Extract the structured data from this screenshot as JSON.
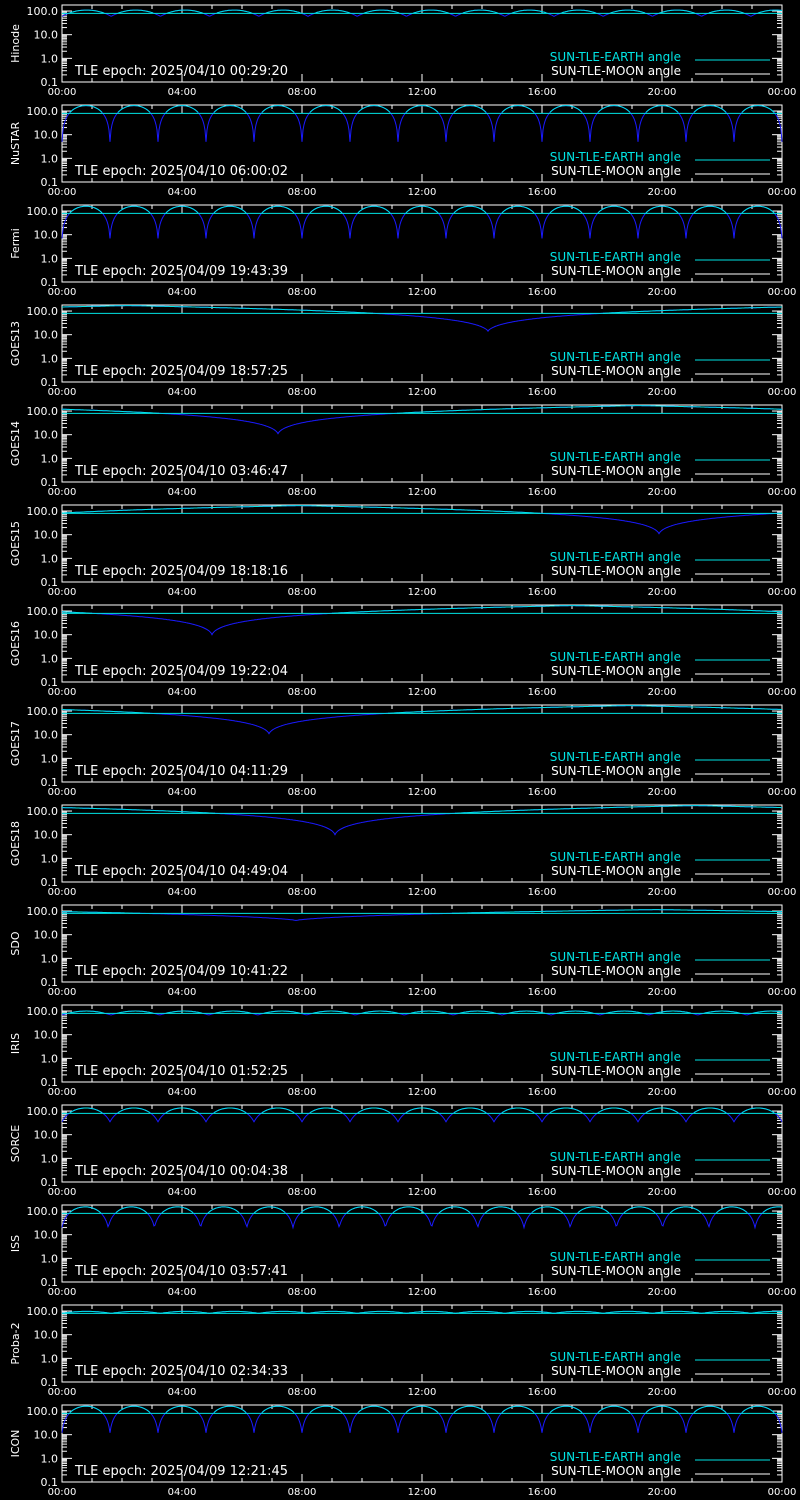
{
  "colors": {
    "background": "#000000",
    "axis": "#ffffff",
    "earth": "#00e5e5",
    "moon": "#ffffff",
    "sun_line": "#1a1aff"
  },
  "legend": {
    "earth_label": "SUN-TLE-EARTH angle",
    "moon_label": "SUN-TLE-MOON angle"
  },
  "x_ticks": [
    "00:00",
    "04:00",
    "08:00",
    "12:00",
    "16:00",
    "20:00",
    "00:00"
  ],
  "y_ticks": [
    "0.1",
    "1.0",
    "10.0",
    "100.0"
  ],
  "chart_data": [
    {
      "type": "line",
      "ylabel": "Hinode",
      "annotation": "TLE epoch: 2025/04/10 00:29:20",
      "xlim": [
        0,
        24
      ],
      "ylim": [
        0.1,
        180
      ],
      "yscale": "log",
      "series": [
        {
          "name": "SUN-TLE-EARTH angle",
          "model": "lobes",
          "period_h": 1.64,
          "min": 60,
          "peak": 110
        },
        {
          "model": "line",
          "x": [
            0,
            24
          ],
          "y": [
            80,
            80
          ]
        }
      ]
    },
    {
      "type": "line",
      "ylabel": "NuSTAR",
      "annotation": "TLE epoch: 2025/04/10 06:00:02",
      "xlim": [
        0,
        24
      ],
      "ylim": [
        0.1,
        180
      ],
      "yscale": "log",
      "series": [
        {
          "name": "SUN-TLE-EARTH angle",
          "model": "lobes",
          "period_h": 1.6,
          "min": 5,
          "peak": 170
        },
        {
          "model": "line",
          "x": [
            0,
            24
          ],
          "y": [
            80,
            80
          ]
        }
      ]
    },
    {
      "type": "line",
      "ylabel": "Fermi",
      "annotation": "TLE epoch: 2025/04/09 19:43:39",
      "xlim": [
        0,
        24
      ],
      "ylim": [
        0.1,
        180
      ],
      "yscale": "log",
      "series": [
        {
          "name": "SUN-TLE-EARTH angle",
          "model": "lobes",
          "period_h": 1.6,
          "min": 7,
          "peak": 160
        },
        {
          "model": "line",
          "x": [
            0,
            24
          ],
          "y": [
            80,
            80
          ]
        }
      ]
    },
    {
      "type": "line",
      "ylabel": "GOES13",
      "annotation": "TLE epoch: 2025/04/09 18:57:25",
      "xlim": [
        0,
        24
      ],
      "ylim": [
        0.1,
        180
      ],
      "yscale": "log",
      "series": [
        {
          "name": "SUN-TLE-EARTH angle",
          "model": "geo",
          "period_h": 24,
          "min_x": 14.2,
          "min": 14,
          "max": 170
        },
        {
          "model": "line",
          "x": [
            0,
            24
          ],
          "y": [
            80,
            80
          ]
        }
      ]
    },
    {
      "type": "line",
      "ylabel": "GOES14",
      "annotation": "TLE epoch: 2025/04/10 03:46:47",
      "xlim": [
        0,
        24
      ],
      "ylim": [
        0.1,
        180
      ],
      "yscale": "log",
      "series": [
        {
          "name": "SUN-TLE-EARTH angle",
          "model": "geo",
          "period_h": 24,
          "min_x": 7.2,
          "min": 11,
          "max": 170
        },
        {
          "model": "line",
          "x": [
            0,
            24
          ],
          "y": [
            80,
            80
          ]
        }
      ]
    },
    {
      "type": "line",
      "ylabel": "GOES15",
      "annotation": "TLE epoch: 2025/04/09 18:18:16",
      "xlim": [
        0,
        24
      ],
      "ylim": [
        0.1,
        180
      ],
      "yscale": "log",
      "series": [
        {
          "name": "SUN-TLE-EARTH angle",
          "model": "geo",
          "period_h": 24,
          "min_x": 19.9,
          "min": 11,
          "max": 170
        },
        {
          "model": "line",
          "x": [
            0,
            24
          ],
          "y": [
            80,
            80
          ]
        }
      ]
    },
    {
      "type": "line",
      "ylabel": "GOES16",
      "annotation": "TLE epoch: 2025/04/09 19:22:04",
      "xlim": [
        0,
        24
      ],
      "ylim": [
        0.1,
        180
      ],
      "yscale": "log",
      "series": [
        {
          "name": "SUN-TLE-EARTH angle",
          "model": "geo",
          "period_h": 24,
          "min_x": 5,
          "min": 10,
          "max": 170
        },
        {
          "model": "line",
          "x": [
            0,
            24
          ],
          "y": [
            80,
            80
          ]
        }
      ]
    },
    {
      "type": "line",
      "ylabel": "GOES17",
      "annotation": "TLE epoch: 2025/04/10 04:11:29",
      "xlim": [
        0,
        24
      ],
      "ylim": [
        0.1,
        180
      ],
      "yscale": "log",
      "series": [
        {
          "name": "SUN-TLE-EARTH angle",
          "model": "geo",
          "period_h": 24,
          "min_x": 6.9,
          "min": 11,
          "max": 170
        },
        {
          "model": "line",
          "x": [
            0,
            24
          ],
          "y": [
            80,
            80
          ]
        }
      ]
    },
    {
      "type": "line",
      "ylabel": "GOES18",
      "annotation": "TLE epoch: 2025/04/10 04:49:04",
      "xlim": [
        0,
        24
      ],
      "ylim": [
        0.1,
        180
      ],
      "yscale": "log",
      "series": [
        {
          "name": "SUN-TLE-EARTH angle",
          "model": "geo",
          "period_h": 24,
          "min_x": 9.1,
          "min": 10,
          "max": 170
        },
        {
          "model": "line",
          "x": [
            0,
            24
          ],
          "y": [
            80,
            80
          ]
        }
      ]
    },
    {
      "type": "line",
      "ylabel": "SDO",
      "annotation": "TLE epoch: 2025/04/09 10:41:22",
      "xlim": [
        0,
        24
      ],
      "ylim": [
        0.1,
        180
      ],
      "yscale": "log",
      "series": [
        {
          "name": "SUN-TLE-EARTH angle",
          "model": "geo",
          "period_h": 24,
          "min_x": 7.8,
          "min": 40,
          "max": 115
        },
        {
          "model": "line",
          "x": [
            0,
            24
          ],
          "y": [
            80,
            80
          ]
        }
      ]
    },
    {
      "type": "line",
      "ylabel": "IRIS",
      "annotation": "TLE epoch: 2025/04/10 01:52:25",
      "xlim": [
        0,
        24
      ],
      "ylim": [
        0.1,
        180
      ],
      "yscale": "log",
      "series": [
        {
          "name": "SUN-TLE-EARTH angle",
          "model": "lobes",
          "period_h": 1.63,
          "min": 68,
          "peak": 100
        },
        {
          "model": "line",
          "x": [
            0,
            24
          ],
          "y": [
            80,
            80
          ]
        }
      ]
    },
    {
      "type": "line",
      "ylabel": "SORCE",
      "annotation": "TLE epoch: 2025/04/10 00:04:38",
      "xlim": [
        0,
        24
      ],
      "ylim": [
        0.1,
        180
      ],
      "yscale": "log",
      "series": [
        {
          "name": "SUN-TLE-EARTH angle",
          "model": "lobes",
          "period_h": 1.6,
          "min": 35,
          "peak": 135
        },
        {
          "model": "line",
          "x": [
            0,
            24
          ],
          "y": [
            80,
            80
          ]
        }
      ]
    },
    {
      "type": "line",
      "ylabel": "ISS",
      "annotation": "TLE epoch: 2025/04/10 03:57:41",
      "xlim": [
        0,
        24
      ],
      "ylim": [
        0.1,
        180
      ],
      "yscale": "log",
      "series": [
        {
          "name": "SUN-TLE-EARTH angle",
          "model": "lobes",
          "period_h": 1.54,
          "min": 20,
          "peak": 150
        },
        {
          "model": "line",
          "x": [
            0,
            24
          ],
          "y": [
            80,
            80
          ]
        }
      ]
    },
    {
      "type": "line",
      "ylabel": "Proba-2",
      "annotation": "TLE epoch: 2025/04/10 02:34:33",
      "xlim": [
        0,
        24
      ],
      "ylim": [
        0.1,
        180
      ],
      "yscale": "log",
      "series": [
        {
          "name": "SUN-TLE-EARTH angle",
          "model": "lobes",
          "period_h": 1.64,
          "min": 80,
          "peak": 97
        },
        {
          "model": "line",
          "x": [
            0,
            24
          ],
          "y": [
            80,
            80
          ]
        }
      ]
    },
    {
      "type": "line",
      "ylabel": "ICON",
      "annotation": "TLE epoch: 2025/04/09 12:21:45",
      "xlim": [
        0,
        24
      ],
      "ylim": [
        0.1,
        180
      ],
      "yscale": "log",
      "series": [
        {
          "name": "SUN-TLE-EARTH angle",
          "model": "lobes",
          "period_h": 1.6,
          "min": 12,
          "peak": 160
        },
        {
          "model": "line",
          "x": [
            0,
            24
          ],
          "y": [
            80,
            80
          ]
        }
      ]
    }
  ]
}
